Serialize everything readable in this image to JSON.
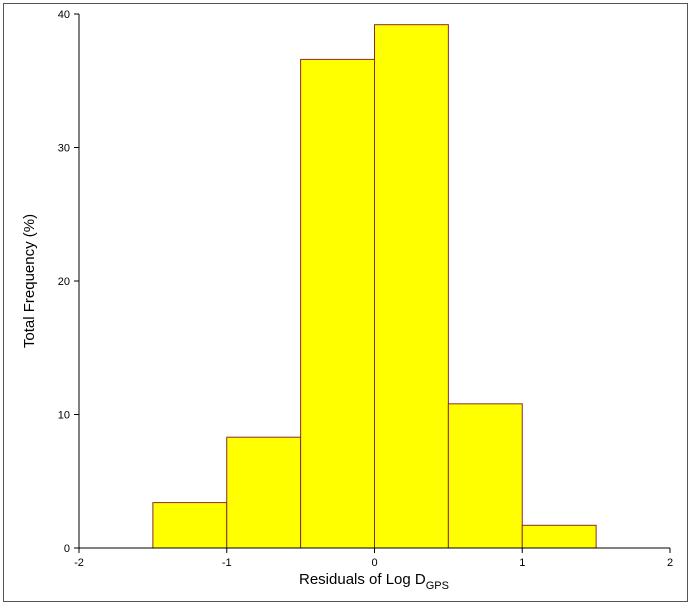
{
  "chart_data": {
    "type": "histogram",
    "bins": [
      -1.5,
      -1,
      -0.5,
      0,
      0.5,
      1,
      1.5
    ],
    "values": [
      3.4,
      8.3,
      36.6,
      39.2,
      10.8,
      1.7
    ],
    "color": "#ffff00",
    "edge_color": "#8b2a2a",
    "xlim": [
      -2,
      2
    ],
    "xticks": [
      -2,
      -1,
      0,
      1,
      2
    ],
    "ylim": [
      0,
      40
    ],
    "yticks": [
      0,
      10,
      20,
      30,
      40
    ],
    "x_label": {
      "text": "Residuals of Log D",
      "subscript": "GPS"
    },
    "y_label": "Total Frequency (%)"
  }
}
